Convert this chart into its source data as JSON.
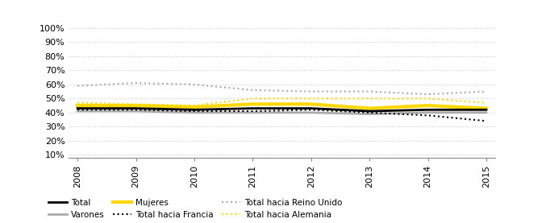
{
  "years": [
    2008,
    2009,
    2010,
    2011,
    2012,
    2013,
    2014,
    2015
  ],
  "total": [
    0.43,
    0.43,
    0.42,
    0.43,
    0.43,
    0.41,
    0.42,
    0.42
  ],
  "varones": [
    0.41,
    0.41,
    0.4,
    0.4,
    0.4,
    0.39,
    0.4,
    0.4
  ],
  "mujeres": [
    0.45,
    0.45,
    0.44,
    0.46,
    0.46,
    0.43,
    0.45,
    0.43
  ],
  "francia": [
    0.42,
    0.42,
    0.41,
    0.41,
    0.42,
    0.4,
    0.38,
    0.34
  ],
  "reino_unido": [
    0.59,
    0.61,
    0.6,
    0.56,
    0.55,
    0.55,
    0.53,
    0.55
  ],
  "alemania": [
    0.47,
    0.46,
    0.45,
    0.5,
    0.5,
    0.5,
    0.5,
    0.47
  ],
  "yticks": [
    0.1,
    0.2,
    0.3,
    0.4,
    0.5,
    0.6,
    0.7,
    0.8,
    0.9,
    1.0
  ],
  "color_total": "#000000",
  "color_varones": "#aaaaaa",
  "color_mujeres": "#FFD700",
  "color_alemania_dot": "#FFD700",
  "grid_color": "#cccccc",
  "background_color": "#ffffff"
}
